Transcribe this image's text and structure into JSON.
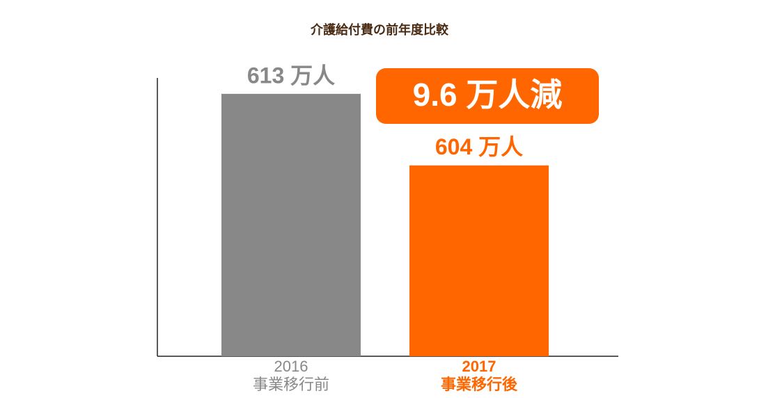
{
  "chart_data": {
    "type": "bar",
    "title": "介護給付費の前年度比較",
    "categories": [
      [
        "2016",
        "事業移行前"
      ],
      [
        "2017",
        "事業移行後"
      ]
    ],
    "values": [
      613,
      604
    ],
    "value_labels": [
      "613 万人",
      "604 万人"
    ],
    "colors": [
      "#888888",
      "#ff6600"
    ],
    "annotation": "9.6 万人減",
    "ylim": [
      580,
      615
    ]
  }
}
